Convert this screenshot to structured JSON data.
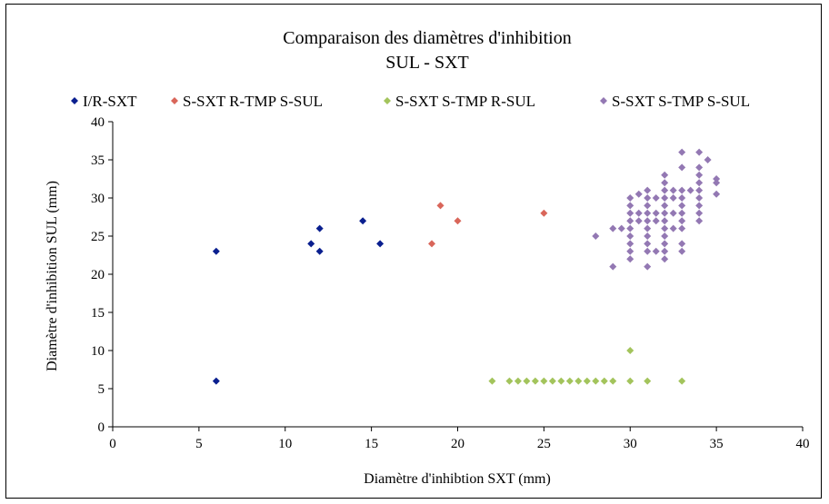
{
  "chart_data": {
    "type": "scatter",
    "title": "Comparaison des diamètres d'inhibition",
    "subtitle": "SUL - SXT",
    "xlabel": "Diamètre d'inhibtion SXT (mm)",
    "ylabel": "Diamètre d'inhibition SUL (mm)",
    "xlim": [
      0,
      40
    ],
    "ylim": [
      0,
      40
    ],
    "xticks": [
      0,
      5,
      10,
      15,
      20,
      25,
      30,
      35,
      40
    ],
    "yticks": [
      0,
      5,
      10,
      15,
      20,
      25,
      30,
      35,
      40
    ],
    "grid": false,
    "legend_position": "top",
    "series": [
      {
        "name": "I/R-SXT",
        "color": "#0a1f8f",
        "points": [
          [
            6,
            6
          ],
          [
            6,
            23
          ],
          [
            11.5,
            24
          ],
          [
            12,
            23
          ],
          [
            12,
            26
          ],
          [
            14.5,
            27
          ],
          [
            15.5,
            24
          ]
        ]
      },
      {
        "name": "S-SXT R-TMP S-SUL",
        "color": "#d9665a",
        "points": [
          [
            18.5,
            24
          ],
          [
            19,
            29
          ],
          [
            20,
            27
          ],
          [
            25,
            28
          ]
        ]
      },
      {
        "name": "S-SXT S-TMP R-SUL",
        "color": "#a3c45c",
        "points": [
          [
            22,
            6
          ],
          [
            23,
            6
          ],
          [
            23.5,
            6
          ],
          [
            24,
            6
          ],
          [
            24.5,
            6
          ],
          [
            25,
            6
          ],
          [
            25.5,
            6
          ],
          [
            26,
            6
          ],
          [
            26.5,
            6
          ],
          [
            27,
            6
          ],
          [
            27.5,
            6
          ],
          [
            28,
            6
          ],
          [
            28.5,
            6
          ],
          [
            29,
            6
          ],
          [
            30,
            6
          ],
          [
            30,
            10
          ],
          [
            31,
            6
          ],
          [
            33,
            6
          ]
        ]
      },
      {
        "name": "S-SXT S-TMP S-SUL",
        "color": "#9378b3",
        "points": [
          [
            28,
            25
          ],
          [
            29,
            21
          ],
          [
            29,
            26
          ],
          [
            29.5,
            26
          ],
          [
            30,
            22
          ],
          [
            30,
            23
          ],
          [
            30,
            24
          ],
          [
            30,
            25
          ],
          [
            30,
            26
          ],
          [
            30,
            27
          ],
          [
            30,
            28
          ],
          [
            30,
            29
          ],
          [
            30,
            30
          ],
          [
            30.5,
            27
          ],
          [
            30.5,
            28
          ],
          [
            30.5,
            30.5
          ],
          [
            31,
            21
          ],
          [
            31,
            23
          ],
          [
            31,
            24
          ],
          [
            31,
            25
          ],
          [
            31,
            26
          ],
          [
            31,
            27
          ],
          [
            31,
            28
          ],
          [
            31,
            29
          ],
          [
            31,
            30
          ],
          [
            31,
            31
          ],
          [
            31.5,
            23
          ],
          [
            31.5,
            27
          ],
          [
            31.5,
            28
          ],
          [
            31.5,
            30
          ],
          [
            32,
            22
          ],
          [
            32,
            23
          ],
          [
            32,
            24
          ],
          [
            32,
            25
          ],
          [
            32,
            26
          ],
          [
            32,
            27
          ],
          [
            32,
            28
          ],
          [
            32,
            29
          ],
          [
            32,
            30
          ],
          [
            32,
            31
          ],
          [
            32,
            32
          ],
          [
            32,
            33
          ],
          [
            32.5,
            26
          ],
          [
            32.5,
            28
          ],
          [
            32.5,
            30
          ],
          [
            32.5,
            31
          ],
          [
            33,
            23
          ],
          [
            33,
            24
          ],
          [
            33,
            26
          ],
          [
            33,
            27
          ],
          [
            33,
            28
          ],
          [
            33,
            29
          ],
          [
            33,
            30
          ],
          [
            33,
            31
          ],
          [
            33,
            34
          ],
          [
            33,
            36
          ],
          [
            33.5,
            31
          ],
          [
            34,
            27
          ],
          [
            34,
            28
          ],
          [
            34,
            29
          ],
          [
            34,
            30
          ],
          [
            34,
            31
          ],
          [
            34,
            32
          ],
          [
            34,
            33
          ],
          [
            34,
            34
          ],
          [
            34,
            36
          ],
          [
            34.5,
            35
          ],
          [
            35,
            30.5
          ],
          [
            35,
            32
          ],
          [
            35,
            32.5
          ]
        ]
      }
    ]
  }
}
